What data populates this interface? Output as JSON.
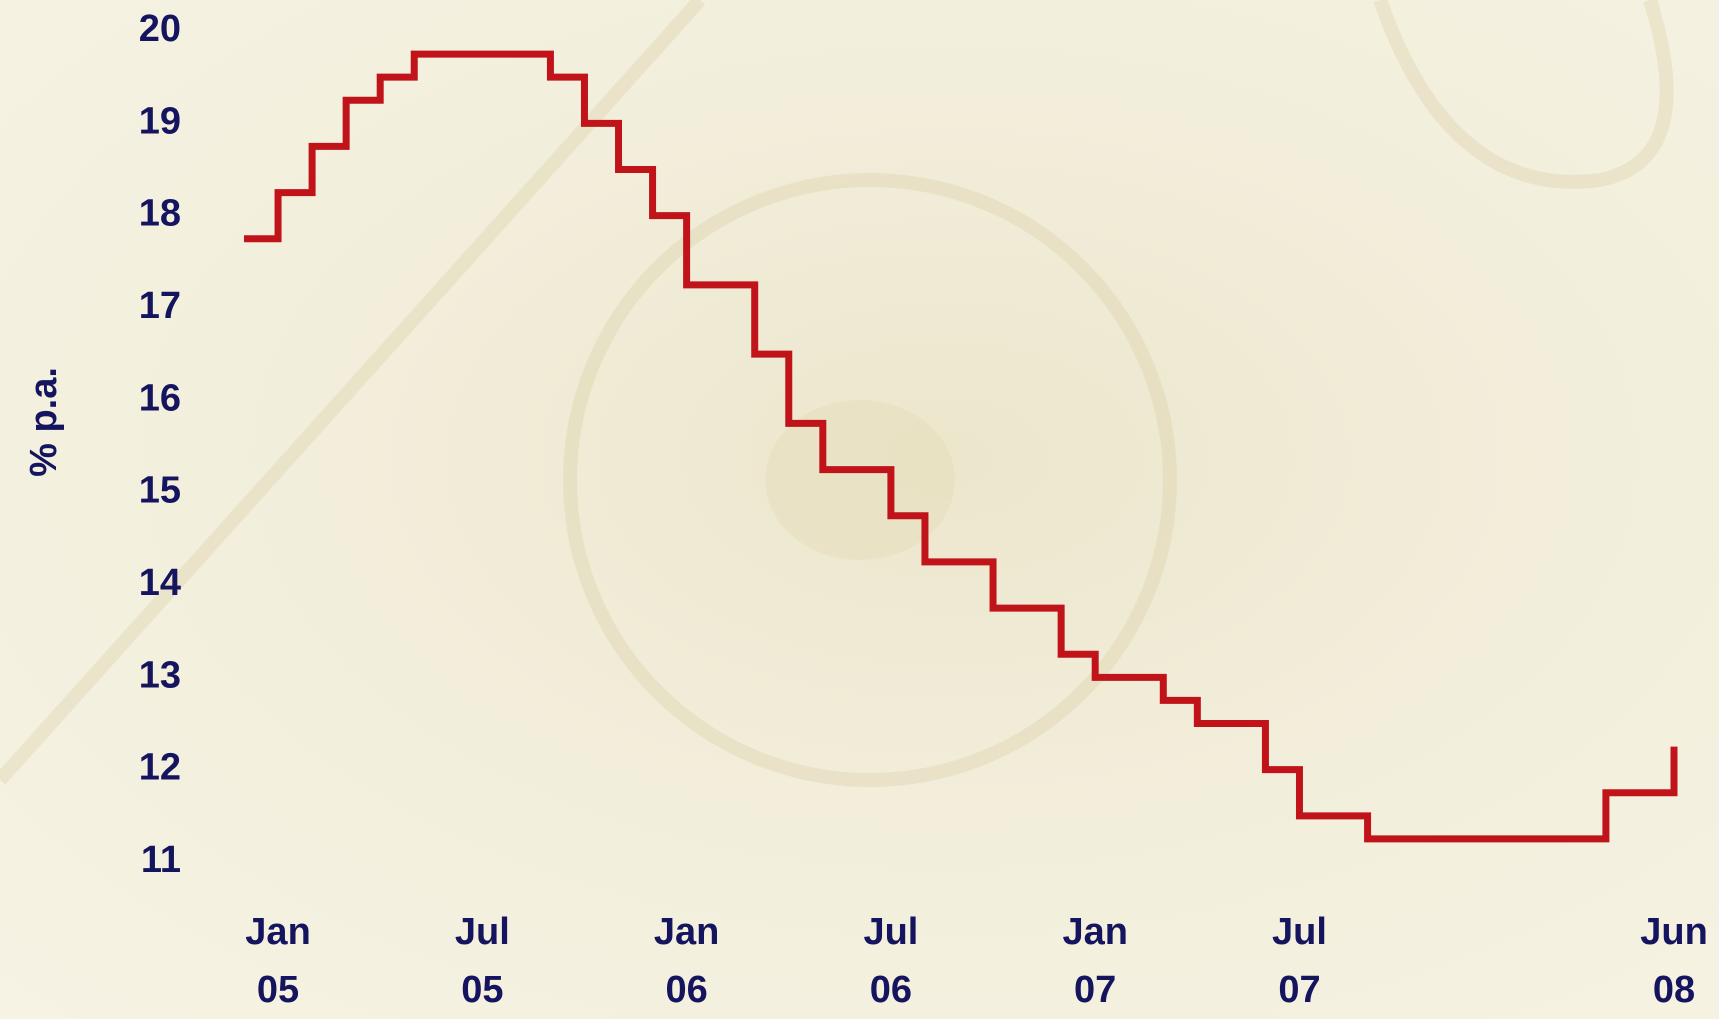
{
  "chart_data": {
    "type": "step",
    "ylabel": "% p.a.",
    "x": [
      "2004-12",
      "2005-01",
      "2005-02",
      "2005-03",
      "2005-04",
      "2005-05",
      "2005-09",
      "2005-10",
      "2005-11",
      "2005-12",
      "2006-01",
      "2006-03",
      "2006-04",
      "2006-05",
      "2006-07",
      "2006-08",
      "2006-10",
      "2006-12",
      "2007-01",
      "2007-03",
      "2007-04",
      "2007-06",
      "2007-07",
      "2007-09",
      "2008-04",
      "2008-06"
    ],
    "series": [
      {
        "color": "#c0141a",
        "values": [
          17.75,
          18.25,
          18.75,
          19.25,
          19.5,
          19.75,
          19.5,
          19,
          18.5,
          18,
          17.25,
          16.5,
          15.75,
          15.25,
          14.75,
          14.25,
          13.75,
          13.25,
          13,
          12.75,
          12.5,
          12,
          11.5,
          11.25,
          11.75,
          12.25
        ]
      }
    ],
    "xlim": [
      "2004-12",
      "2008-06"
    ],
    "xticks": [
      {
        "value": "2005-01",
        "label": "Jan 05"
      },
      {
        "value": "2005-07",
        "label": "Jul 05"
      },
      {
        "value": "2006-01",
        "label": "Jan 06"
      },
      {
        "value": "2006-07",
        "label": "Jul 06"
      },
      {
        "value": "2007-01",
        "label": "Jan 07"
      },
      {
        "value": "2007-07",
        "label": "Jul 07"
      },
      {
        "value": "2008-06",
        "label": "Jun 08"
      }
    ],
    "ylim": [
      11,
      20
    ],
    "yticks": [
      11,
      12,
      13,
      14,
      15,
      16,
      17,
      18,
      19,
      20
    ],
    "grid": false
  }
}
